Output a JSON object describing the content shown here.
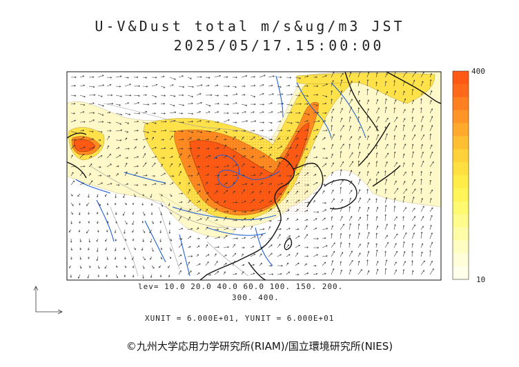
{
  "title_line1": "U-V&Dust total m/s&ug/m3 JST",
  "title_line2": "2025/05/17.15:00:00",
  "legend": {
    "max_label": "400",
    "min_label": "10",
    "colors": [
      "#ff5a14",
      "#ff6a1a",
      "#ff8020",
      "#ff9526",
      "#ffaa2c",
      "#ffbf33",
      "#ffd23a",
      "#ffe040",
      "#ffec48",
      "#fff558",
      "#fffa70",
      "#fffb8c",
      "#fffca8",
      "#fffdc2",
      "#fffed8",
      "#ffffea"
    ]
  },
  "levels_line1": "lev= 10.0 20.0 40.0 60.0 100. 150. 200.",
  "levels_line2": "300. 400.",
  "units_text": "XUNIT = 6.000E+01, YUNIT = 6.000E+01",
  "credit": "©九州大学応用力学研究所(RIAM)/国立環境研究所(NIES)",
  "map_colors": {
    "coast": "#111111",
    "river": "#1f5fd6",
    "border": "#9a9a9a",
    "dust_low": "#fff8c8",
    "dust_mid": "#ffe24a",
    "dust_high": "#ff8a22",
    "dust_max": "#ff5a14"
  }
}
